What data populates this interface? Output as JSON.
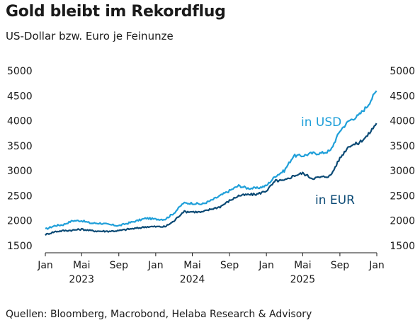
{
  "title": "Gold bleibt im Rekordflug",
  "subtitle": "US-Dollar bzw. Euro je Feinunze",
  "source": "Quellen: Bloomberg, Macrobond, Helaba Research & Advisory",
  "chart_data": {
    "type": "line",
    "title": "Gold bleibt im Rekordflug",
    "subtitle": "US-Dollar bzw. Euro je Feinunze",
    "ylim": [
      1500,
      5000
    ],
    "y_ticks": [
      1500,
      2000,
      2500,
      3000,
      3500,
      4000,
      4500,
      5000
    ],
    "y_ticks_both_sides": true,
    "grid": false,
    "x_ticks": [
      "Jan",
      "Mai",
      "Sep",
      "Jan",
      "Mai",
      "Sep",
      "Jan",
      "Mai",
      "Sep",
      "Jan"
    ],
    "x_tick_dates": [
      "2023-01",
      "2023-05",
      "2023-09",
      "2024-01",
      "2024-05",
      "2024-09",
      "2025-01",
      "2025-05",
      "2025-09",
      "2026-01"
    ],
    "year_labels": [
      "2023",
      "2024",
      "2025"
    ],
    "legend_placement": "inline labels",
    "series": [
      {
        "name": "in USD",
        "color": "#1f9fd9",
        "x": [
          "2023-01",
          "2023-02",
          "2023-03",
          "2023-04",
          "2023-05",
          "2023-06",
          "2023-07",
          "2023-08",
          "2023-09",
          "2023-10",
          "2023-11",
          "2023-12",
          "2024-01",
          "2024-02",
          "2024-03",
          "2024-04",
          "2024-05",
          "2024-06",
          "2024-07",
          "2024-08",
          "2024-09",
          "2024-10",
          "2024-11",
          "2024-12",
          "2025-01",
          "2025-02",
          "2025-03",
          "2025-04",
          "2025-05",
          "2025-06",
          "2025-07",
          "2025-08",
          "2025-09",
          "2025-10",
          "2025-11",
          "2025-12",
          "2025-12-31"
        ],
        "values": [
          1830,
          1900,
          1920,
          2000,
          2000,
          1950,
          1950,
          1920,
          1900,
          1950,
          2000,
          2050,
          2030,
          2030,
          2150,
          2350,
          2350,
          2330,
          2400,
          2500,
          2600,
          2700,
          2650,
          2650,
          2700,
          2900,
          3000,
          3300,
          3300,
          3350,
          3350,
          3400,
          3800,
          4000,
          4100,
          4300,
          4600
        ]
      },
      {
        "name": "in EUR",
        "color": "#0b4a75",
        "x": [
          "2023-01",
          "2023-02",
          "2023-03",
          "2023-04",
          "2023-05",
          "2023-06",
          "2023-07",
          "2023-08",
          "2023-09",
          "2023-10",
          "2023-11",
          "2023-12",
          "2024-01",
          "2024-02",
          "2024-03",
          "2024-04",
          "2024-05",
          "2024-06",
          "2024-07",
          "2024-08",
          "2024-09",
          "2024-10",
          "2024-11",
          "2024-12",
          "2025-01",
          "2025-02",
          "2025-03",
          "2025-04",
          "2025-05",
          "2025-06",
          "2025-07",
          "2025-08",
          "2025-09",
          "2025-10",
          "2025-11",
          "2025-12",
          "2025-12-31"
        ],
        "values": [
          1720,
          1780,
          1800,
          1810,
          1830,
          1800,
          1790,
          1790,
          1800,
          1830,
          1850,
          1880,
          1880,
          1880,
          1990,
          2180,
          2180,
          2170,
          2230,
          2280,
          2400,
          2500,
          2520,
          2530,
          2600,
          2800,
          2800,
          2900,
          2950,
          2850,
          2870,
          2900,
          3250,
          3500,
          3550,
          3700,
          3950
        ]
      }
    ]
  }
}
